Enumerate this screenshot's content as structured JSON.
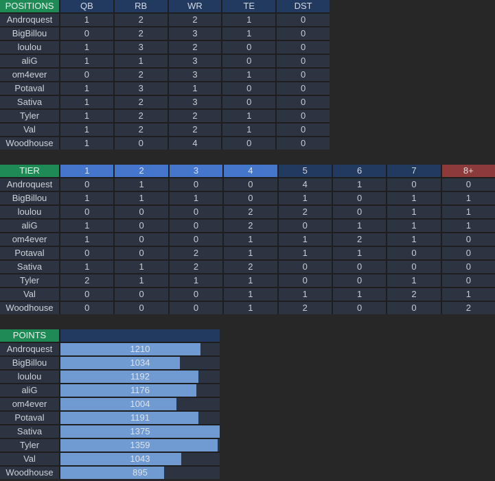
{
  "colors": {
    "background": "#272727",
    "grid_line": "#1e1e1e",
    "cell_bg": "#2b3440",
    "header_navy": "#233a60",
    "header_green": "#1e8b57",
    "tier_blue": "#4477cc",
    "tier_red": "#8c3a3a",
    "bar_fill": "#6f9ad2",
    "text": "#c7ccd4"
  },
  "chart_data": [
    {
      "type": "table",
      "title": "POSITIONS",
      "columns": [
        "QB",
        "RB",
        "WR",
        "TE",
        "DST"
      ],
      "teams": [
        "Androquest",
        "BigBillou",
        "loulou",
        "aliG",
        "om4ever",
        "Potaval",
        "Sativa",
        "Tyler",
        "Val",
        "Woodhouse"
      ],
      "rows": [
        [
          1,
          2,
          2,
          1,
          0
        ],
        [
          0,
          2,
          3,
          1,
          0
        ],
        [
          1,
          3,
          2,
          0,
          0
        ],
        [
          1,
          1,
          3,
          0,
          0
        ],
        [
          0,
          2,
          3,
          1,
          0
        ],
        [
          1,
          3,
          1,
          0,
          0
        ],
        [
          1,
          2,
          3,
          0,
          0
        ],
        [
          1,
          2,
          2,
          1,
          0
        ],
        [
          1,
          2,
          2,
          1,
          0
        ],
        [
          1,
          0,
          4,
          0,
          0
        ]
      ],
      "header_colors": [
        "navy",
        "navy",
        "navy",
        "navy",
        "navy"
      ]
    },
    {
      "type": "table",
      "title": "TIER",
      "columns": [
        "1",
        "2",
        "3",
        "4",
        "5",
        "6",
        "7",
        "8+"
      ],
      "teams": [
        "Androquest",
        "BigBillou",
        "loulou",
        "aliG",
        "om4ever",
        "Potaval",
        "Sativa",
        "Tyler",
        "Val",
        "Woodhouse"
      ],
      "rows": [
        [
          0,
          1,
          0,
          0,
          4,
          1,
          0,
          0
        ],
        [
          1,
          1,
          1,
          0,
          1,
          0,
          1,
          1
        ],
        [
          0,
          0,
          0,
          2,
          2,
          0,
          1,
          1
        ],
        [
          1,
          0,
          0,
          2,
          0,
          1,
          1,
          1
        ],
        [
          1,
          0,
          0,
          1,
          1,
          2,
          1,
          0
        ],
        [
          0,
          0,
          2,
          1,
          1,
          1,
          0,
          0
        ],
        [
          1,
          1,
          2,
          2,
          0,
          0,
          0,
          0
        ],
        [
          2,
          1,
          1,
          1,
          0,
          0,
          1,
          0
        ],
        [
          0,
          0,
          0,
          1,
          1,
          1,
          2,
          1
        ],
        [
          0,
          0,
          0,
          1,
          2,
          0,
          0,
          2
        ]
      ],
      "header_colors": [
        "blue",
        "blue",
        "blue",
        "blue",
        "navy",
        "navy",
        "navy",
        "red"
      ]
    },
    {
      "type": "bar",
      "orientation": "horizontal",
      "title": "POINTS",
      "categories": [
        "Androquest",
        "BigBillou",
        "loulou",
        "aliG",
        "om4ever",
        "Potaval",
        "Sativa",
        "Tyler",
        "Val",
        "Woodhouse"
      ],
      "values": [
        1210,
        1034,
        1192,
        1176,
        1004,
        1191,
        1375,
        1359,
        1043,
        895
      ],
      "xlim": [
        0,
        1375
      ],
      "legend": false,
      "grid": false
    }
  ]
}
